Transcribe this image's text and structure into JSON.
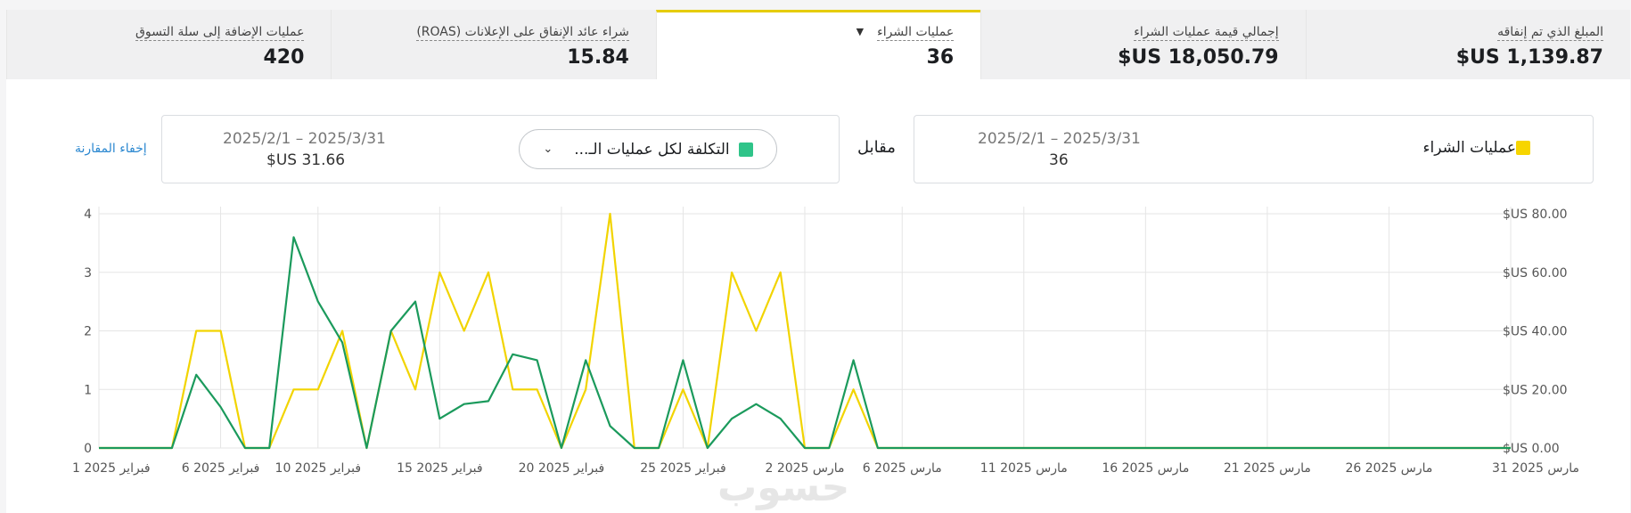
{
  "metrics": [
    {
      "label": "المبلغ الذي تم إنفاقه",
      "value": "$US 1,139.87",
      "active": false,
      "dropdown": false
    },
    {
      "label": "إجمالي قيمة عمليات الشراء",
      "value": "$US 18,050.79",
      "active": false,
      "dropdown": false
    },
    {
      "label": "عمليات الشراء",
      "value": "36",
      "active": true,
      "dropdown": true
    },
    {
      "label": "شراء عائد الإنفاق على الإعلانات (ROAS)",
      "value": "15.84",
      "active": false,
      "dropdown": false
    },
    {
      "label": "عمليات الإضافة إلى سلة التسوق",
      "value": "420",
      "active": false,
      "dropdown": false
    }
  ],
  "comparison": {
    "primary": {
      "name": "عمليات الشراء",
      "date_range": "2025/2/1 – 2025/3/31",
      "value": "36",
      "color": "#f7d500"
    },
    "vs_label": "مقابل",
    "secondary": {
      "name": "التكلفة لكل عمليات الـ...",
      "date_range": "2025/2/1 – 2025/3/31",
      "value": "$US 31.66",
      "color": "#2fc489"
    },
    "hide_label": "إخفاء المقارنة"
  },
  "watermark": "حسوب",
  "chart_data": {
    "type": "line",
    "x_tick_labels": [
      "1 فبراير 2025",
      "6 فبراير 2025",
      "10 فبراير 2025",
      "15 فبراير 2025",
      "20 فبراير 2025",
      "25 فبراير 2025",
      "2 مارس 2025",
      "6 مارس 2025",
      "11 مارس 2025",
      "16 مارس 2025",
      "21 مارس 2025",
      "26 مارس 2025",
      "31 مارس 2025"
    ],
    "y_left_ticks": [
      "0",
      "1",
      "2",
      "3",
      "4"
    ],
    "y_right_ticks": [
      "$US 0.00",
      "$US 20.00",
      "$US 40.00",
      "$US 60.00",
      "$US 80.00"
    ],
    "y_left_range": [
      0,
      4
    ],
    "y_right_range": [
      0,
      80
    ],
    "grid": true,
    "colors": {
      "primary": "#f2d400",
      "secondary": "#1b9a5c",
      "grid": "#e5e5e5"
    },
    "series": [
      {
        "axis": "left",
        "values": [
          0,
          0,
          0,
          0,
          2,
          2,
          0,
          0,
          1,
          1,
          2,
          0,
          2,
          1,
          3,
          2,
          3,
          1,
          1,
          0,
          1,
          4,
          0,
          0,
          1,
          0,
          3,
          2,
          3,
          0,
          0,
          1,
          0,
          0,
          0,
          0,
          0,
          0,
          0,
          0,
          0,
          0,
          0,
          0,
          0,
          0,
          0,
          0,
          0,
          0,
          0,
          0,
          0,
          0,
          0,
          0,
          0,
          0,
          0
        ]
      },
      {
        "axis": "right",
        "values": [
          0,
          0,
          0,
          0,
          25,
          14,
          0,
          0,
          72,
          50,
          36,
          0,
          40,
          50,
          10,
          15,
          16,
          32,
          30,
          0,
          30,
          7.5,
          0,
          0,
          30,
          0,
          10,
          15,
          10,
          0,
          0,
          30,
          0,
          0,
          0,
          0,
          0,
          0,
          0,
          0,
          0,
          0,
          0,
          0,
          0,
          0,
          0,
          0,
          0,
          0,
          0,
          0,
          0,
          0,
          0,
          0,
          0,
          0,
          0
        ]
      }
    ]
  }
}
